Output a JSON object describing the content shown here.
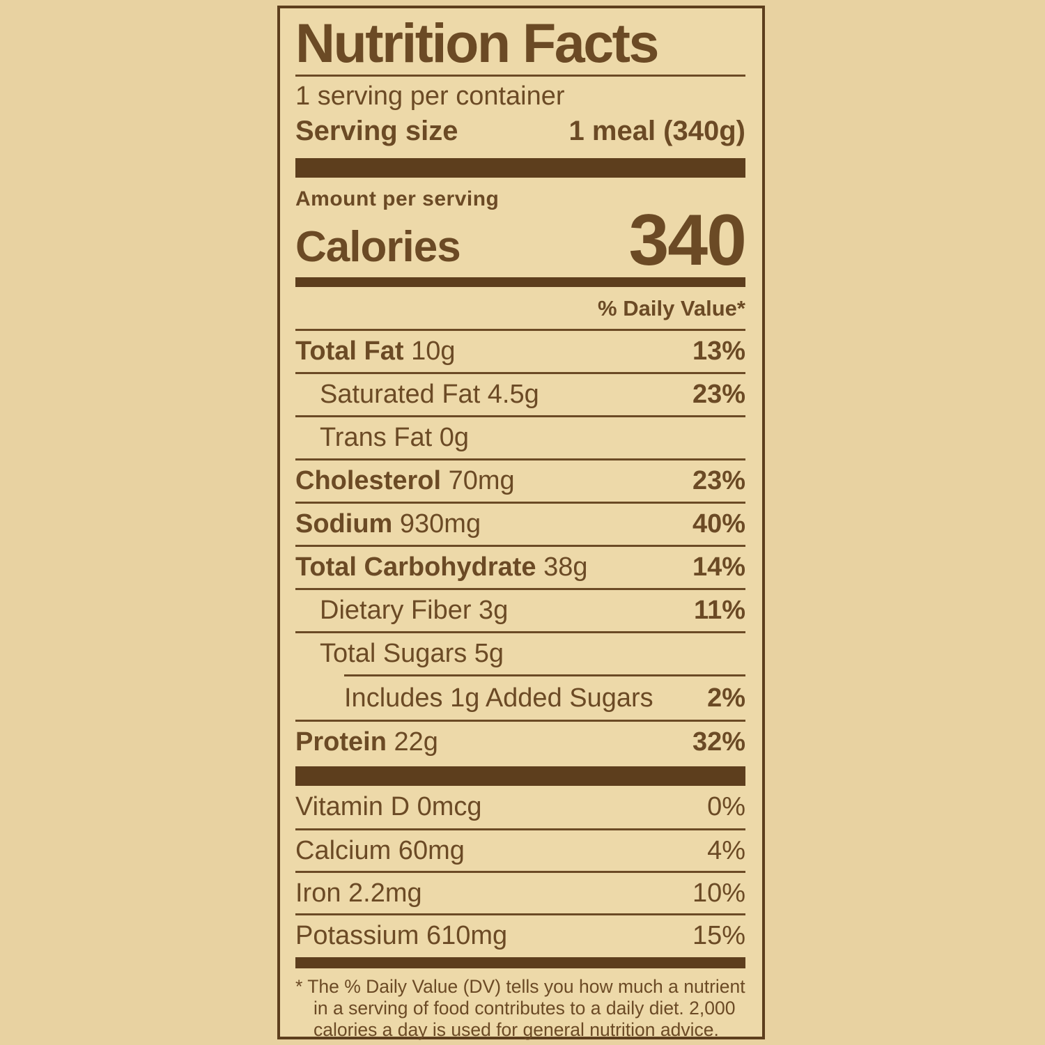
{
  "colors": {
    "page_bg": "#e8d2a1",
    "label_bg": "#edd9a9",
    "ink": "#6b4a25",
    "bar": "#5d3e1d"
  },
  "label": {
    "title": "Nutrition Facts",
    "servings_per_container": "1 serving per container",
    "serving_size": {
      "label": "Serving size",
      "value": "1 meal (340g)"
    },
    "amount_per_serving": "Amount per serving",
    "calories": {
      "label": "Calories",
      "value": "340"
    },
    "daily_value_header": "% Daily Value*",
    "nutrient_rows": [
      {
        "name": "Total Fat",
        "amount": " 10g",
        "dv": "13%"
      },
      {
        "name": "",
        "amount": "Saturated Fat 4.5g",
        "dv": "23%"
      },
      {
        "name": "",
        "amount": "Trans Fat 0g",
        "dv": ""
      },
      {
        "name": "Cholesterol",
        "amount": " 70mg",
        "dv": "23%"
      },
      {
        "name": "Sodium",
        "amount": " 930mg",
        "dv": "40%"
      },
      {
        "name": "Total Carbohydrate",
        "amount": " 38g",
        "dv": "14%"
      },
      {
        "name": "",
        "amount": "Dietary Fiber 3g",
        "dv": "11%"
      },
      {
        "name": "",
        "amount": "Total Sugars 5g",
        "dv": ""
      },
      {
        "name": "",
        "amount": "Includes 1g Added Sugars",
        "dv": "2%"
      },
      {
        "name": "Protein",
        "amount": " 22g",
        "dv": "32%"
      }
    ],
    "vitamin_rows": [
      {
        "name": "Vitamin D 0mcg",
        "dv": "0%"
      },
      {
        "name": "Calcium 60mg",
        "dv": "4%"
      },
      {
        "name": "Iron 2.2mg",
        "dv": "10%"
      },
      {
        "name": "Potassium 610mg",
        "dv": "15%"
      }
    ],
    "footnote": "* The % Daily Value (DV) tells you how much a nutrient in a serving of food contributes to a daily diet. 2,000 calories a day is used for general nutrition advice."
  }
}
